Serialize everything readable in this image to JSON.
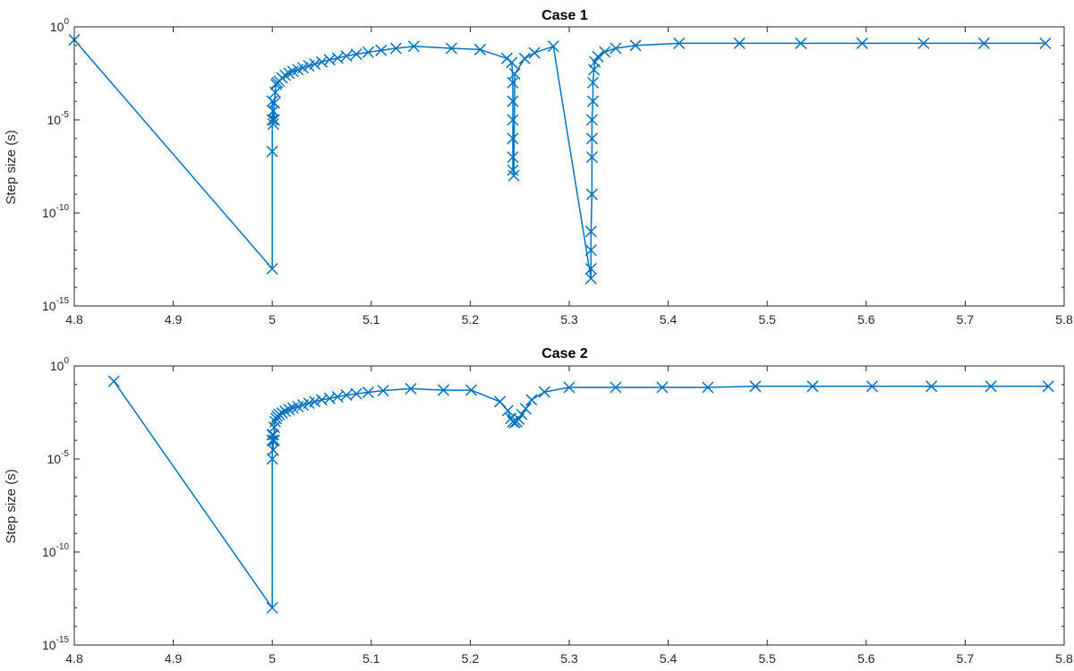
{
  "chart_data": [
    {
      "type": "line",
      "title": "Case 1",
      "xlabel": "",
      "ylabel": "Step size (s)",
      "xlim": [
        4.8,
        5.8
      ],
      "ylim": [
        1e-15,
        1
      ],
      "yscale": "log",
      "xticks": [
        "4.8",
        "4.9",
        "5",
        "5.1",
        "5.2",
        "5.3",
        "5.4",
        "5.5",
        "5.6",
        "5.7",
        "5.8"
      ],
      "yticks": [
        {
          "base": "10",
          "exp": "0"
        },
        {
          "base": "10",
          "exp": "-5"
        },
        {
          "base": "10",
          "exp": "-10"
        },
        {
          "base": "10",
          "exp": "-15"
        }
      ],
      "grid": false,
      "color": "#0072BD",
      "marker": "x",
      "series": [
        {
          "x": [
            4.8,
            5.0,
            5.0,
            5.0,
            5.0,
            5.001,
            5.001,
            5.002,
            5.002,
            5.003,
            5.004,
            5.005,
            5.007,
            5.01,
            5.013,
            5.017,
            5.021,
            5.026,
            5.031,
            5.037,
            5.043,
            5.05,
            5.058,
            5.066,
            5.075,
            5.085,
            5.097,
            5.11,
            5.125,
            5.143,
            5.181,
            5.21,
            5.237,
            5.242,
            5.243,
            5.243,
            5.243,
            5.243,
            5.243,
            5.243,
            5.244,
            5.245,
            5.255,
            5.265,
            5.284,
            5.322,
            5.322,
            5.322,
            5.322,
            5.323,
            5.323,
            5.323,
            5.323,
            5.324,
            5.324,
            5.325,
            5.326,
            5.329,
            5.336,
            5.347,
            5.367,
            5.411,
            5.472,
            5.534,
            5.596,
            5.658,
            5.719,
            5.781
          ],
          "y": [
            0.2,
            1e-13,
            2e-07,
            1e-05,
            0.0001,
            6e-06,
            3e-05,
            1e-05,
            8e-05,
            0.0003,
            0.0008,
            0.001,
            0.0012,
            0.0018,
            0.0025,
            0.0032,
            0.004,
            0.005,
            0.0063,
            0.008,
            0.01,
            0.013,
            0.017,
            0.021,
            0.027,
            0.034,
            0.043,
            0.055,
            0.07,
            0.09,
            0.07,
            0.06,
            0.02,
            0.012,
            0.001,
            0.0001,
            1e-05,
            1e-06,
            1e-07,
            2e-08,
            1e-08,
            0.003,
            0.02,
            0.04,
            0.09,
            3e-14,
            1e-13,
            1e-12,
            1e-11,
            1e-09,
            1e-07,
            1e-06,
            1e-05,
            0.0001,
            0.001,
            0.005,
            0.013,
            0.025,
            0.045,
            0.07,
            0.1,
            0.13,
            0.13,
            0.13,
            0.13,
            0.13,
            0.13,
            0.13
          ]
        }
      ]
    },
    {
      "type": "line",
      "title": "Case 2",
      "xlabel": "",
      "ylabel": "Step size (s)",
      "xlim": [
        4.8,
        5.8
      ],
      "ylim": [
        1e-15,
        1
      ],
      "yscale": "log",
      "xticks": [
        "4.8",
        "4.9",
        "5",
        "5.1",
        "5.2",
        "5.3",
        "5.4",
        "5.5",
        "5.6",
        "5.7",
        "5.8"
      ],
      "yticks": [
        {
          "base": "10",
          "exp": "0"
        },
        {
          "base": "10",
          "exp": "-5"
        },
        {
          "base": "10",
          "exp": "-10"
        },
        {
          "base": "10",
          "exp": "-15"
        }
      ],
      "grid": false,
      "color": "#0072BD",
      "marker": "x",
      "series": [
        {
          "x": [
            4.84,
            5.0,
            5.0,
            5.0,
            5.0,
            5.001,
            5.001,
            5.002,
            5.002,
            5.003,
            5.004,
            5.005,
            5.007,
            5.01,
            5.013,
            5.017,
            5.021,
            5.026,
            5.031,
            5.037,
            5.043,
            5.05,
            5.058,
            5.066,
            5.075,
            5.085,
            5.097,
            5.112,
            5.14,
            5.173,
            5.201,
            5.23,
            5.238,
            5.241,
            5.243,
            5.245,
            5.247,
            5.249,
            5.252,
            5.256,
            5.262,
            5.275,
            5.3,
            5.347,
            5.394,
            5.44,
            5.488,
            5.546,
            5.606,
            5.666,
            5.726,
            5.784
          ],
          "y": [
            0.15,
            1e-13,
            1e-05,
            0.0001,
            0.0002,
            3e-05,
            0.0002,
            0.0001,
            0.0005,
            0.001,
            0.0015,
            0.002,
            0.0025,
            0.003,
            0.0037,
            0.0045,
            0.0055,
            0.0065,
            0.008,
            0.01,
            0.012,
            0.015,
            0.018,
            0.022,
            0.027,
            0.032,
            0.038,
            0.047,
            0.06,
            0.05,
            0.05,
            0.012,
            0.004,
            0.0015,
            0.001,
            0.0009,
            0.001,
            0.0014,
            0.0025,
            0.005,
            0.015,
            0.04,
            0.07,
            0.07,
            0.07,
            0.07,
            0.08,
            0.08,
            0.08,
            0.08,
            0.08,
            0.08
          ]
        }
      ]
    }
  ]
}
